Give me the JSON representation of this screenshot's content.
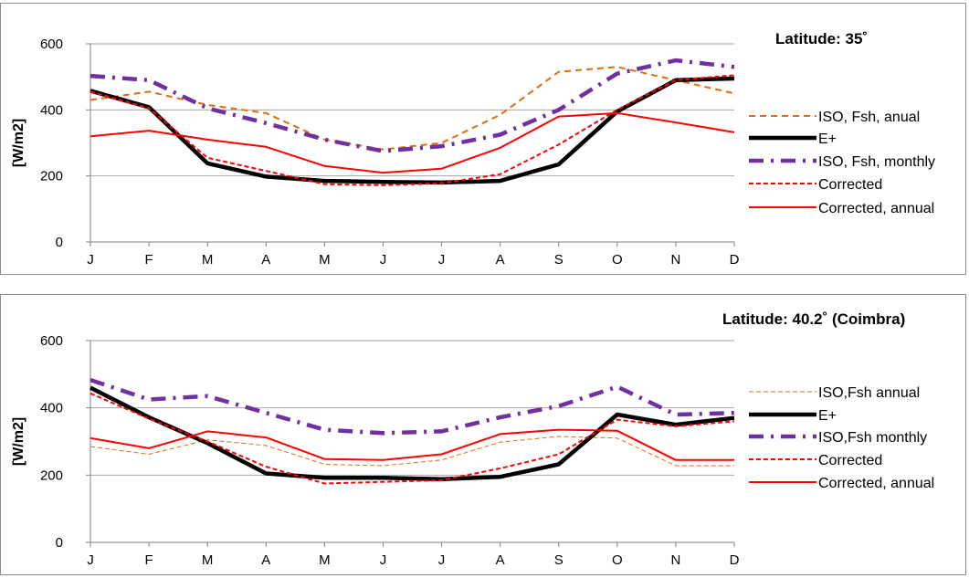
{
  "chart_data": [
    {
      "type": "line",
      "title": "Latitude: 35˚",
      "xlabel": "",
      "ylabel": "[W/m2]",
      "categories": [
        "J",
        "F",
        "M",
        "A",
        "M",
        "J",
        "J",
        "A",
        "S",
        "O",
        "N",
        "D"
      ],
      "ylim": [
        0,
        600
      ],
      "yticks": [
        "0",
        "200",
        "400",
        "600"
      ],
      "grid": true,
      "legend_position": "right",
      "series": [
        {
          "name": "ISO, Fsh, anual",
          "color": "#e46c0a",
          "style": "dashed-orange",
          "values": [
            430,
            455,
            415,
            390,
            310,
            280,
            300,
            385,
            515,
            530,
            490,
            450
          ]
        },
        {
          "name": "E+",
          "color": "#000000",
          "style": "thick-solid",
          "values": [
            458,
            408,
            238,
            198,
            185,
            182,
            180,
            185,
            235,
            395,
            490,
            495
          ]
        },
        {
          "name": "ISO, Fsh, monthly",
          "color": "#7030a0",
          "style": "dashdot-purple",
          "values": [
            503,
            490,
            405,
            360,
            310,
            275,
            290,
            325,
            400,
            510,
            550,
            530
          ]
        },
        {
          "name": "Corrected",
          "color": "#ff0000",
          "style": "dashed-red",
          "values": [
            455,
            405,
            255,
            215,
            175,
            172,
            178,
            205,
            295,
            400,
            490,
            505
          ]
        },
        {
          "name": "Corrected, annual",
          "color": "#ff0000",
          "style": "solid-red",
          "values": [
            320,
            337,
            310,
            288,
            230,
            210,
            222,
            285,
            380,
            390,
            362,
            332
          ]
        }
      ]
    },
    {
      "type": "line",
      "title": "Latitude: 40.2˚ (Coimbra)",
      "xlabel": "",
      "ylabel": "[W/m2]",
      "categories": [
        "J",
        "F",
        "M",
        "A",
        "M",
        "J",
        "J",
        "A",
        "S",
        "O",
        "N",
        "D"
      ],
      "ylim": [
        0,
        600
      ],
      "yticks": [
        "0",
        "200",
        "400",
        "600"
      ],
      "grid": true,
      "legend_position": "right",
      "series": [
        {
          "name": "ISO,Fsh annual",
          "color": "#e46c0a",
          "style": "thin-dashed-orange",
          "values": [
            285,
            262,
            305,
            288,
            232,
            228,
            245,
            298,
            315,
            310,
            228,
            228
          ]
        },
        {
          "name": "E+",
          "color": "#000000",
          "style": "thick-solid",
          "values": [
            460,
            372,
            295,
            205,
            192,
            192,
            188,
            195,
            232,
            380,
            350,
            370
          ]
        },
        {
          "name": "ISO,Fsh monthly",
          "color": "#7030a0",
          "style": "dashdot-purple",
          "values": [
            483,
            425,
            435,
            385,
            335,
            325,
            330,
            372,
            405,
            463,
            380,
            385
          ]
        },
        {
          "name": "Corrected",
          "color": "#ff0000",
          "style": "dashed-red",
          "values": [
            443,
            368,
            300,
            225,
            175,
            180,
            185,
            220,
            262,
            365,
            345,
            360
          ]
        },
        {
          "name": "Corrected, annual",
          "color": "#ff0000",
          "style": "solid-red",
          "values": [
            310,
            280,
            330,
            312,
            248,
            245,
            262,
            322,
            335,
            332,
            245,
            245
          ]
        }
      ]
    }
  ]
}
